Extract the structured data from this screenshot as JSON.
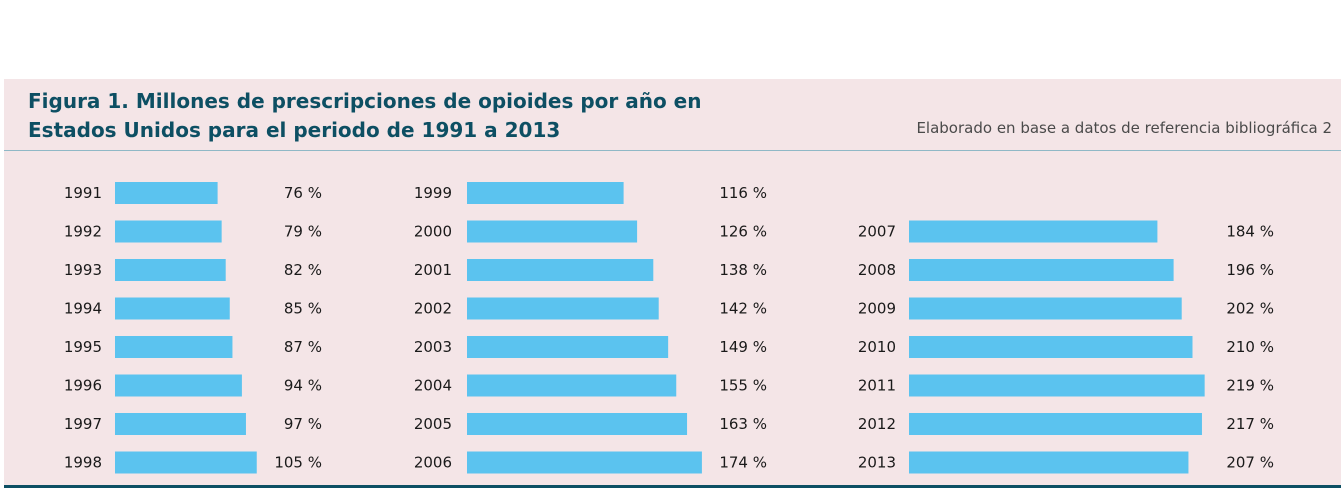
{
  "header": {
    "title_line1": "Figura 1. Millones de prescripciones de opioides por año en",
    "title_line2": "Estados Unidos para el periodo de 1991 a 2013",
    "source": "Elaborado en base a datos de referencia bibliográfica 2"
  },
  "colors": {
    "bar": "#5bc3ef",
    "panel": "#f4e5e7",
    "title": "#0d4f63"
  },
  "chart_data": {
    "type": "bar",
    "orientation": "horizontal",
    "title": "Figura 1. Millones de prescripciones de opioides por año en Estados Unidos para el periodo de 1991 a 2013",
    "xlabel": "",
    "ylabel": "",
    "value_suffix": " %",
    "categories": [
      "1991",
      "1992",
      "1993",
      "1994",
      "1995",
      "1996",
      "1997",
      "1998",
      "1999",
      "2000",
      "2001",
      "2002",
      "2003",
      "2004",
      "2005",
      "2006",
      "2007",
      "2008",
      "2009",
      "2010",
      "2011",
      "2012",
      "2013"
    ],
    "values": [
      76,
      79,
      82,
      85,
      87,
      94,
      97,
      105,
      116,
      126,
      138,
      142,
      149,
      155,
      163,
      174,
      184,
      196,
      202,
      210,
      219,
      217,
      207
    ],
    "value_labels": [
      "76 %",
      "79 %",
      "82 %",
      "85 %",
      "87 %",
      "94 %",
      "97 %",
      "105 %",
      "116 %",
      "126 %",
      "138 %",
      "142 %",
      "149 %",
      "155 %",
      "163 %",
      "174 %",
      "184 %",
      "196 %",
      "202 %",
      "210 %",
      "219 %",
      "217 %",
      "207 %"
    ],
    "grid": false,
    "legend": "none"
  }
}
